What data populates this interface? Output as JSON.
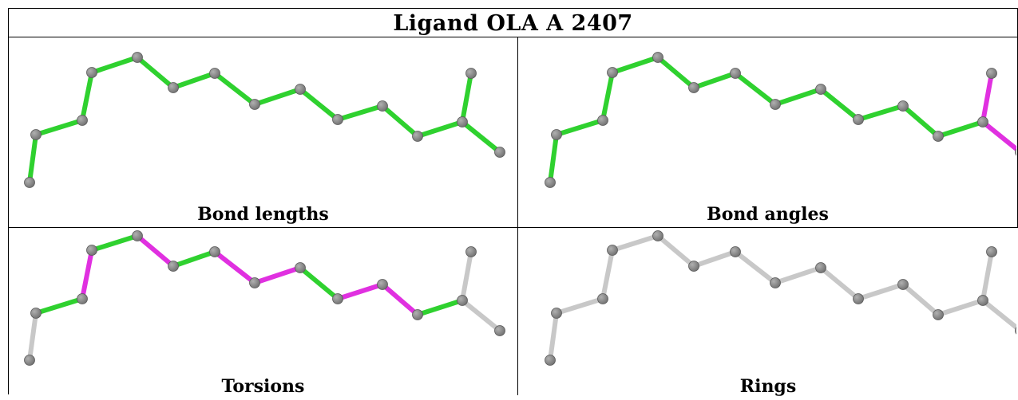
{
  "title": "Ligand OLA A 2407",
  "colors": {
    "green": "#2fd12f",
    "magenta": "#e030e0",
    "grey_bond": "#c8c8c8",
    "atom": "#757575",
    "atom_light": "#c7c7c7"
  },
  "panels": [
    {
      "id": "bond-lengths",
      "caption": "Bond lengths",
      "bond_colors": [
        "green",
        "green",
        "green",
        "green",
        "green",
        "green",
        "green",
        "green",
        "green",
        "green",
        "green",
        "green",
        "green",
        "green",
        "green",
        "green"
      ]
    },
    {
      "id": "bond-angles",
      "caption": "Bond angles",
      "bond_colors": [
        "green",
        "green",
        "green",
        "green",
        "green",
        "green",
        "green",
        "green",
        "green",
        "green",
        "green",
        "green",
        "green",
        "green",
        "magenta",
        "magenta"
      ]
    },
    {
      "id": "torsions",
      "caption": "Torsions",
      "bond_colors": [
        "grey",
        "green",
        "magenta",
        "green",
        "magenta",
        "green",
        "magenta",
        "magenta",
        "green",
        "magenta",
        "magenta",
        "green",
        "magenta",
        "magenta",
        "grey",
        "grey"
      ]
    },
    {
      "id": "rings",
      "caption": "Rings",
      "bond_colors": [
        "grey",
        "grey",
        "grey",
        "grey",
        "grey",
        "grey",
        "grey",
        "grey",
        "grey",
        "grey",
        "grey",
        "grey",
        "grey",
        "grey",
        "grey",
        "grey"
      ]
    }
  ]
}
